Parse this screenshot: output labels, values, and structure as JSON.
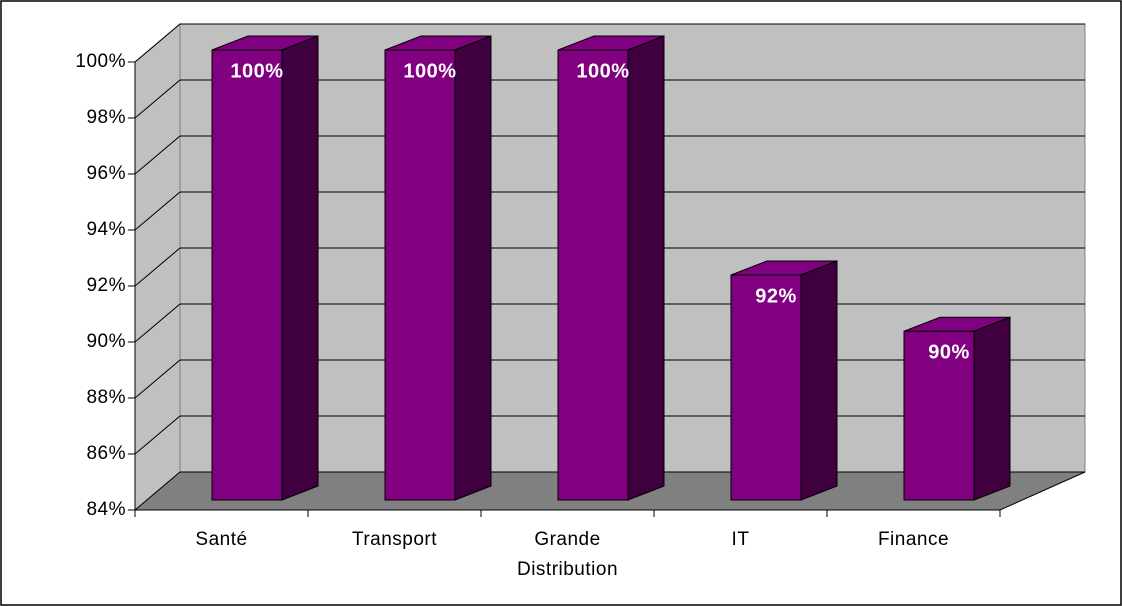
{
  "chart_data": {
    "type": "bar3d",
    "categories": [
      "Santé",
      "Transport",
      "Grande Distribution",
      "IT",
      "Finance"
    ],
    "values": [
      100,
      100,
      100,
      92,
      90
    ],
    "value_labels": [
      "100%",
      "100%",
      "100%",
      "92%",
      "90%"
    ],
    "color": "#800080",
    "ylim": [
      84,
      100
    ],
    "yticks": [
      {
        "value": 84,
        "label": "84%"
      },
      {
        "value": 86,
        "label": "86%"
      },
      {
        "value": 88,
        "label": "88%"
      },
      {
        "value": 90,
        "label": "90%"
      },
      {
        "value": 92,
        "label": "92%"
      },
      {
        "value": 94,
        "label": "94%"
      },
      {
        "value": 96,
        "label": "96%"
      },
      {
        "value": 98,
        "label": "98%"
      },
      {
        "value": 100,
        "label": "100%"
      }
    ],
    "grid": true
  }
}
